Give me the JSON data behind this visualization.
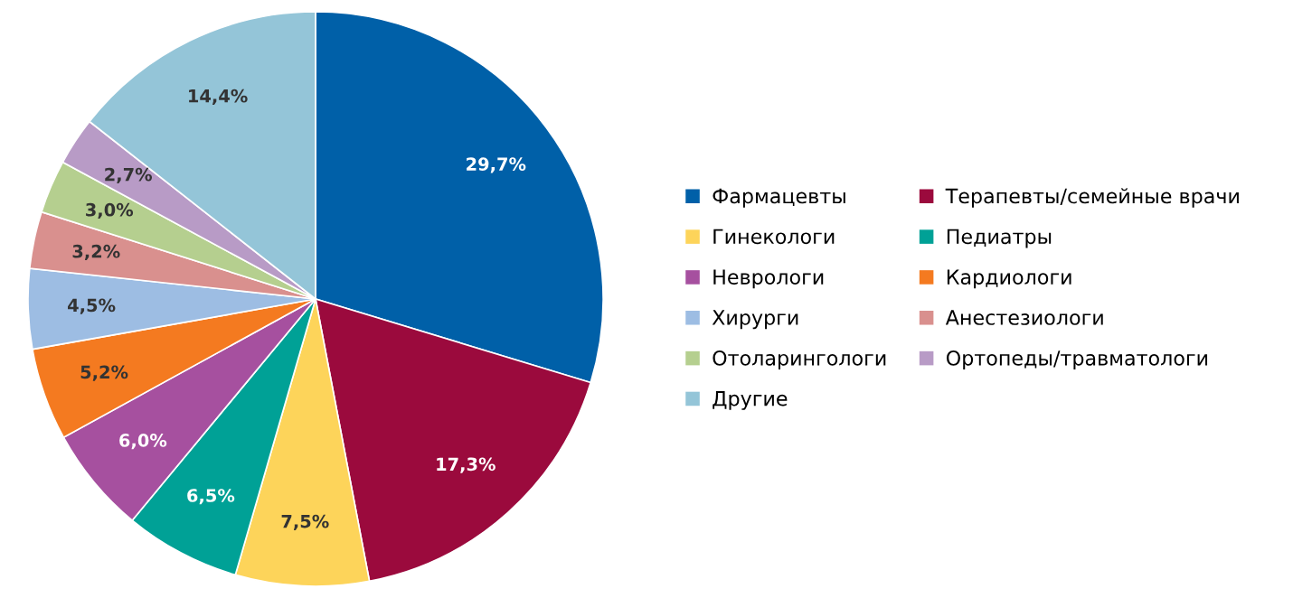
{
  "chart_data": {
    "type": "pie",
    "categories": [
      "Фармацевты",
      "Терапевты/семейные врачи",
      "Гинекологи",
      "Педиатры",
      "Неврологи",
      "Кардиологи",
      "Хирурги",
      "Анестезиологи",
      "Отоларингологи",
      "Ортопеды/травматологи",
      "Другие"
    ],
    "values": [
      29.7,
      17.3,
      7.5,
      6.5,
      6.0,
      5.2,
      4.5,
      3.2,
      3.0,
      2.7,
      14.4
    ],
    "value_labels": [
      "29,7%",
      "17,3%",
      "7,5%",
      "6,5%",
      "6,0%",
      "5,2%",
      "4,5%",
      "3,2%",
      "3,0%",
      "2,7%",
      "14,4%"
    ],
    "colors": [
      "#0060a8",
      "#9b0a3d",
      "#fdd45a",
      "#00a196",
      "#a6509f",
      "#f47a20",
      "#9dbde3",
      "#d9908e",
      "#b5cf8f",
      "#b89bc6",
      "#94c5d8"
    ],
    "legend": "right"
  }
}
